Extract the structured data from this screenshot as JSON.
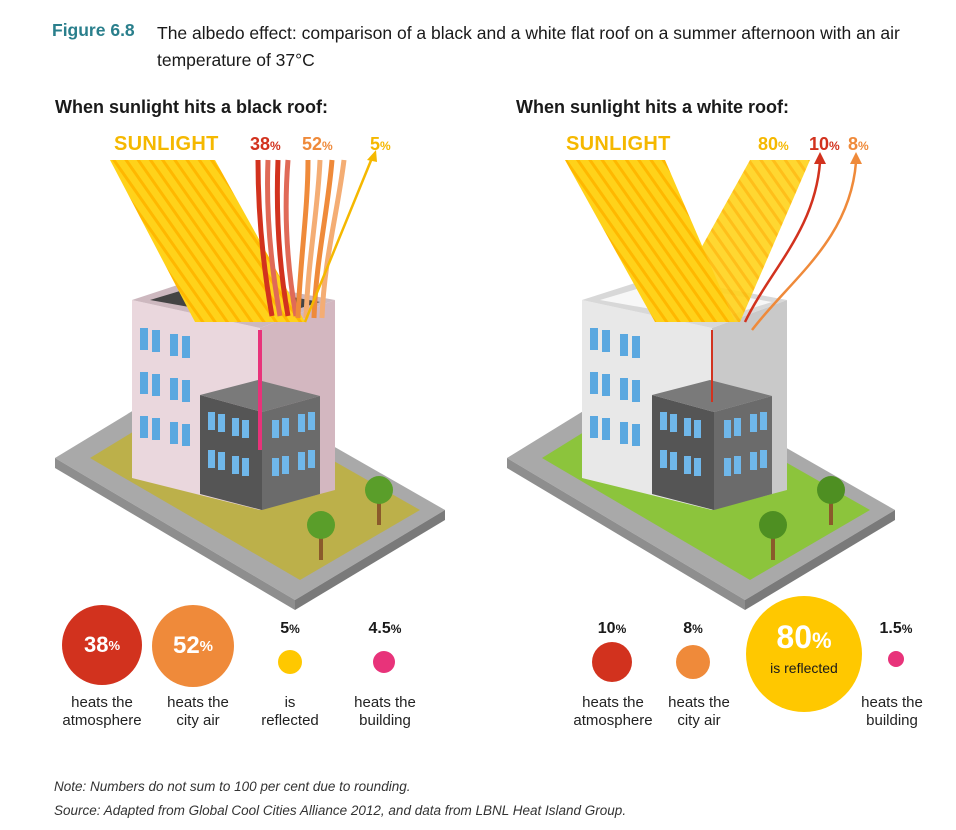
{
  "figure": {
    "label": "Figure 6.8",
    "title": "The albedo effect: comparison of a black and a white flat roof on a summer afternoon with an air temperature of 37°C"
  },
  "black_roof": {
    "title": "When sunlight hits a black roof:",
    "sunlight_label": "SUNLIGHT",
    "top_values": [
      {
        "num": "38",
        "color": "#d2321e"
      },
      {
        "num": "52",
        "color": "#ef8a3a"
      },
      {
        "num": "5",
        "color": "#f5b800"
      }
    ],
    "stats": [
      {
        "num": "38",
        "unit": "%",
        "label1": "heats the",
        "label2": "atmosphere",
        "color": "#d2321e"
      },
      {
        "num": "52",
        "unit": "%",
        "label1": "heats the",
        "label2": "city air",
        "color": "#ef8a3a"
      },
      {
        "num": "5",
        "unit": "%",
        "label1": "is",
        "label2": "reflected",
        "color": "#ffc800"
      },
      {
        "num": "4.5",
        "unit": "%",
        "label1": "heats the",
        "label2": "building",
        "color": "#e8337a"
      }
    ]
  },
  "white_roof": {
    "title": "When sunlight hits a white roof:",
    "sunlight_label": "SUNLIGHT",
    "top_values": [
      {
        "num": "80",
        "color": "#f5b800"
      },
      {
        "num": "10",
        "color": "#d2321e"
      },
      {
        "num": "8",
        "color": "#ef8a3a"
      }
    ],
    "stats": [
      {
        "num": "10",
        "unit": "%",
        "label1": "heats the",
        "label2": "atmosphere",
        "color": "#d2321e"
      },
      {
        "num": "8",
        "unit": "%",
        "label1": "heats the",
        "label2": "city air",
        "color": "#ef8a3a"
      },
      {
        "num": "80",
        "unit": "%",
        "label1": "is reflected",
        "label2": "",
        "color": "#ffc800"
      },
      {
        "num": "1.5",
        "unit": "%",
        "label1": "heats the",
        "label2": "building",
        "color": "#e8337a"
      }
    ]
  },
  "pct_sign": "%",
  "note": "Note: Numbers do not sum to 100 per cent due to rounding.",
  "source": "Source: Adapted from Global Cool Cities Alliance 2012, and data from LBNL Heat Island Group."
}
